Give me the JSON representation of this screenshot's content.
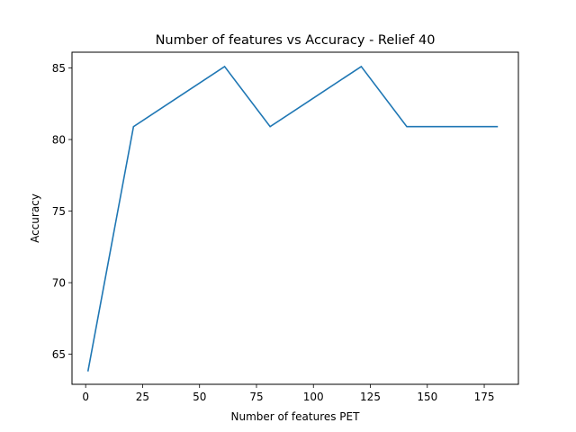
{
  "chart_data": {
    "type": "line",
    "title": "Number of features vs Accuracy - Relief 40",
    "xlabel": "Number of features PET",
    "ylabel": "Accuracy",
    "xlim": [
      -6,
      190
    ],
    "ylim": [
      62.9,
      86.1
    ],
    "x_ticks": [
      0,
      25,
      50,
      75,
      100,
      125,
      150,
      175
    ],
    "y_ticks": [
      65,
      70,
      75,
      80,
      85
    ],
    "grid": false,
    "legend": "none",
    "series": [
      {
        "color": "#1f77b4",
        "x": [
          1,
          21,
          41,
          61,
          81,
          101,
          121,
          141,
          161,
          181
        ],
        "y": [
          63.8,
          80.9,
          83.0,
          85.1,
          80.9,
          83.0,
          85.1,
          80.9,
          80.9,
          80.9
        ]
      }
    ]
  }
}
